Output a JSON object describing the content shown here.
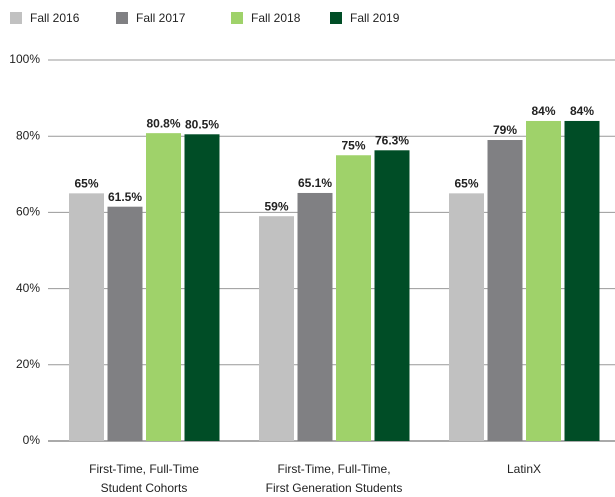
{
  "chart_data": {
    "type": "bar",
    "categories": [
      [
        "First-Time, Full-Time",
        "Student Cohorts"
      ],
      [
        "First-Time, Full-Time,",
        "First Generation Students"
      ],
      [
        "LatinX"
      ]
    ],
    "series": [
      {
        "name": "Fall 2016",
        "color": "#c1c1c1",
        "values": [
          65,
          59,
          65
        ],
        "value_labels": [
          "65%",
          "59%",
          "65%"
        ]
      },
      {
        "name": "Fall 2017",
        "color": "#808083",
        "values": [
          61.5,
          65.1,
          79
        ],
        "value_labels": [
          "61.5%",
          "65.1%",
          "79%"
        ]
      },
      {
        "name": "Fall 2018",
        "color": "#9fd26a",
        "values": [
          80.8,
          75,
          84
        ],
        "value_labels": [
          "80.8%",
          "75%",
          "84%"
        ]
      },
      {
        "name": "Fall 2019",
        "color": "#004d26",
        "values": [
          80.5,
          76.3,
          84
        ],
        "value_labels": [
          "80.5%",
          "76.3%",
          "84%"
        ]
      }
    ],
    "ylim": [
      0,
      100
    ],
    "yticks": [
      {
        "value": 0,
        "label": "0%"
      },
      {
        "value": 20,
        "label": "20%"
      },
      {
        "value": 40,
        "label": "40%"
      },
      {
        "value": 60,
        "label": "60%"
      },
      {
        "value": 80,
        "label": "80%"
      },
      {
        "value": 100,
        "label": "100%"
      }
    ],
    "grid": true,
    "legend": "top"
  }
}
